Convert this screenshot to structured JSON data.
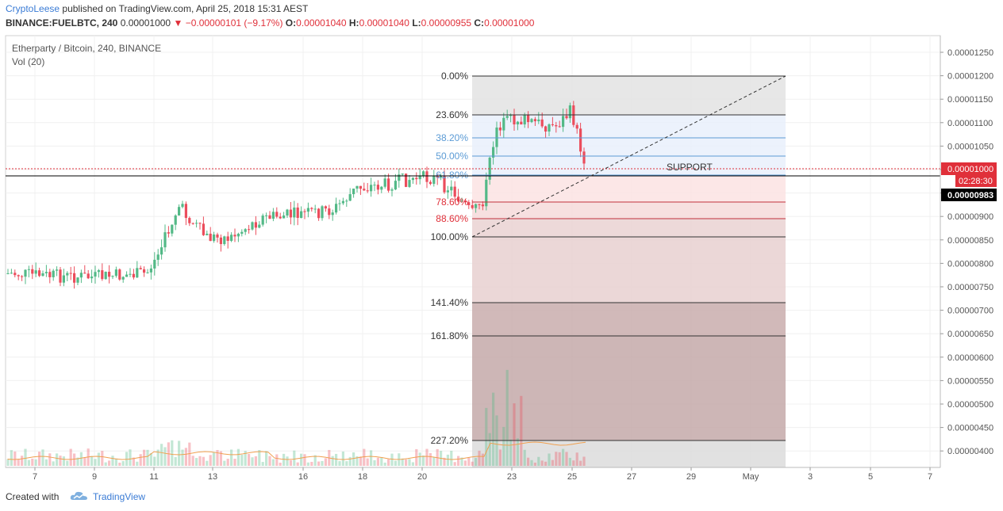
{
  "header": {
    "author": "CryptoLeese",
    "published_text": "published on TradingView.com, April 25, 2018 15:31 AEST",
    "symbol": "BINANCE:FUELBTC, 240",
    "last": "0.00001000",
    "change": "−0.00000101 (−9.17%)",
    "o_label": "O:",
    "o": "0.00001040",
    "h_label": "H:",
    "h": "0.00001040",
    "l_label": "L:",
    "l": "0.00000955",
    "c_label": "C:",
    "c": "0.00001000"
  },
  "legend": {
    "title": "Etherparty / Bitcoin, 240, BINANCE",
    "vol": "Vol (20)"
  },
  "price_axis": {
    "ticks": [
      "0.00001250",
      "0.00001200",
      "0.00001150",
      "0.00001100",
      "0.00001050",
      "0.00001000",
      "0.00000950",
      "0.00000900",
      "0.00000850",
      "0.00000800",
      "0.00000750",
      "0.00000700",
      "0.00000650",
      "0.00000600",
      "0.00000550",
      "0.00000500",
      "0.00000450",
      "0.00000400"
    ],
    "last_price_label": "0.00001000",
    "countdown_label": "02:28:30",
    "cursor_price_label": "0.00000983",
    "last_color": "#e0303a",
    "cursor_color": "#000000"
  },
  "time_axis": {
    "ticks": [
      "7",
      "9",
      "11",
      "13",
      "16",
      "18",
      "20",
      "23",
      "25",
      "27",
      "29",
      "May",
      "3",
      "5",
      "7"
    ]
  },
  "fib": {
    "levels": [
      {
        "label": "0.00%",
        "color": "#333333"
      },
      {
        "label": "23.60%",
        "color": "#333333"
      },
      {
        "label": "38.20%",
        "color": "#5b9bd5"
      },
      {
        "label": "50.00%",
        "color": "#5b9bd5"
      },
      {
        "label": "61.80%",
        "color": "#5b9bd5"
      },
      {
        "label": "78.60%",
        "color": "#e0303a"
      },
      {
        "label": "88.60%",
        "color": "#e0303a"
      },
      {
        "label": "100.00%",
        "color": "#333333"
      },
      {
        "label": "141.40%",
        "color": "#333333"
      },
      {
        "label": "161.80%",
        "color": "#333333"
      },
      {
        "label": "227.20%",
        "color": "#333333"
      }
    ]
  },
  "annotation": {
    "support": "SUPPORT"
  },
  "colors": {
    "up": "#53b987",
    "down": "#eb4d5c"
  },
  "footer": {
    "created": "Created with",
    "brand": "TradingView"
  }
}
